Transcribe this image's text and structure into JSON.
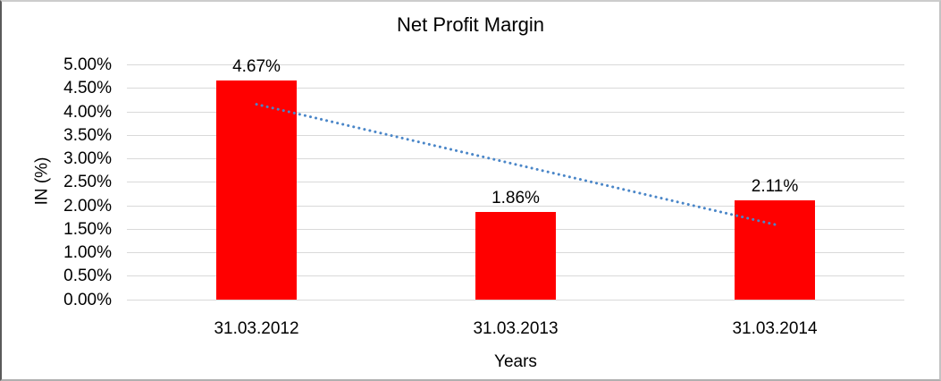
{
  "chart_data": {
    "type": "bar",
    "title": "Net Profit Margin",
    "xlabel": "Years",
    "ylabel": "IN (%)",
    "categories": [
      "31.03.2012",
      "31.03.2013",
      "31.03.2014"
    ],
    "values": [
      4.67,
      1.86,
      2.11
    ],
    "data_labels": [
      "4.67%",
      "1.86%",
      "2.11%"
    ],
    "ylim": [
      0,
      5
    ],
    "ytick_step": 0.5,
    "ytick_labels": [
      "0.00%",
      "0.50%",
      "1.00%",
      "1.50%",
      "2.00%",
      "2.50%",
      "3.00%",
      "3.50%",
      "4.00%",
      "4.50%",
      "5.00%"
    ],
    "grid": true,
    "legend": false,
    "bar_color": "#FF0000",
    "gridline_color": "#D9D9D9",
    "text_color": "#000000",
    "trendline": {
      "type": "linear",
      "style": "dotted",
      "color": "#4A86C8",
      "from": {
        "category": "31.03.2012",
        "value": 4.16
      },
      "to": {
        "category": "31.03.2014",
        "value": 1.6
      }
    }
  }
}
